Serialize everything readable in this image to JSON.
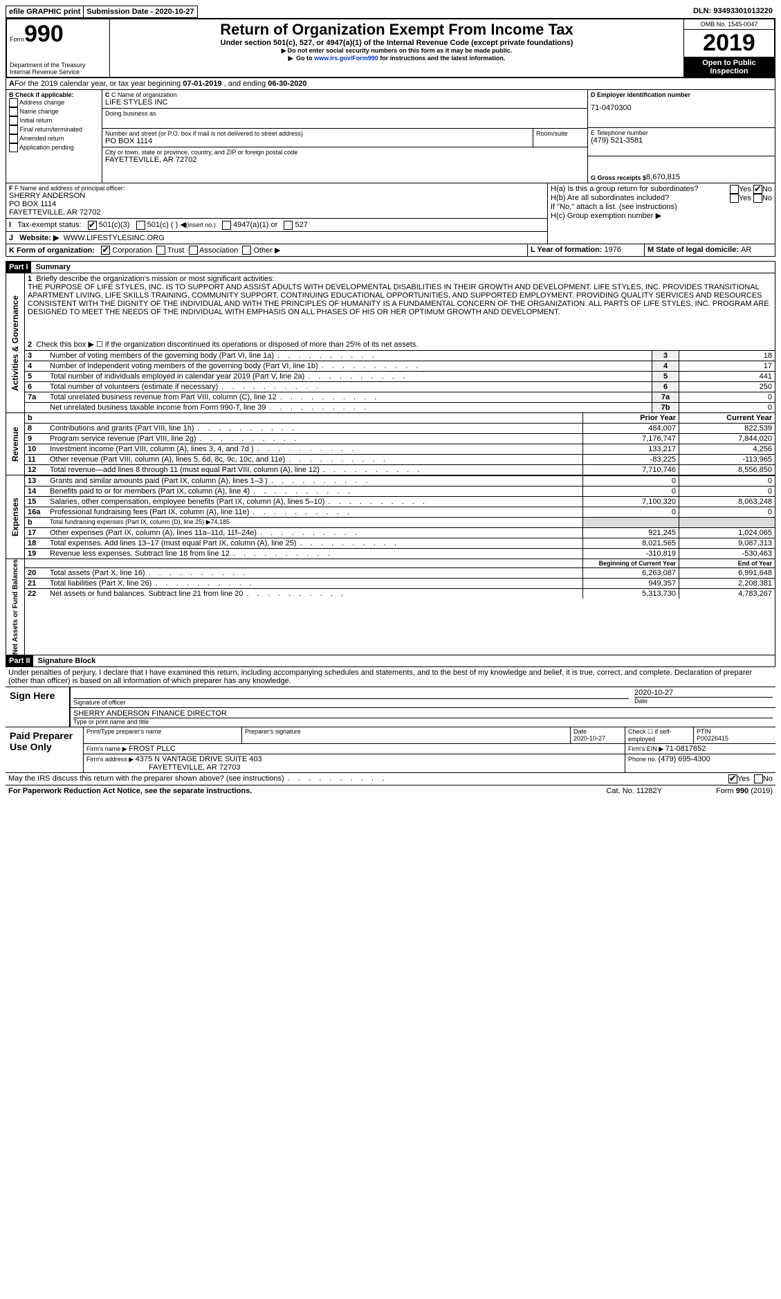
{
  "topbar": {
    "efile": "efile GRAPHIC print",
    "subdate_label": "Submission Date - ",
    "subdate": "2020-10-27",
    "dln_label": "DLN: ",
    "dln": "93493301013220"
  },
  "header": {
    "form_word": "Form",
    "form_num": "990",
    "dept1": "Department of the Treasury",
    "dept2": "Internal Revenue Service",
    "title": "Return of Organization Exempt From Income Tax",
    "sub1": "Under section 501(c), 527, or 4947(a)(1) of the Internal Revenue Code (except private foundations)",
    "sub2": "Do not enter social security numbers on this form as it may be made public.",
    "sub3_pre": "Go to ",
    "sub3_link": "www.irs.gov/Form990",
    "sub3_post": " for instructions and the latest information.",
    "omb": "OMB No. 1545-0047",
    "year": "2019",
    "open": "Open to Public Inspection"
  },
  "period": {
    "label_a": "For the 2019 calendar year, or tax year beginning ",
    "begin": "07-01-2019",
    "mid": " , and ending ",
    "end": "06-30-2020"
  },
  "boxB": {
    "label": "B Check if applicable:",
    "c1": "Address change",
    "c2": "Name change",
    "c3": "Initial return",
    "c4": "Final return/terminated",
    "c5": "Amended return",
    "c6": "Application pending"
  },
  "boxC": {
    "label": "C Name of organization",
    "name": "LIFE STYLES INC",
    "dba_label": "Doing business as",
    "street_label": "Number and street (or P.O. box if mail is not delivered to street address)",
    "street": "PO BOX 1114",
    "room_label": "Room/suite",
    "city_label": "City or town, state or province, country, and ZIP or foreign postal code",
    "city": "FAYETTEVILLE, AR  72702"
  },
  "boxD": {
    "label": "D Employer identification number",
    "val": "71-0470300"
  },
  "boxE": {
    "label": "E Telephone number",
    "val": "(479) 521-3581"
  },
  "boxG": {
    "label": "G Gross receipts $ ",
    "val": "8,670,815"
  },
  "boxF": {
    "label": "F  Name and address of principal officer:",
    "l1": "SHERRY ANDERSON",
    "l2": "PO BOX 1114",
    "l3": "FAYETTEVILLE, AR  72702"
  },
  "boxI": {
    "label": "Tax-exempt status:",
    "o1": "501(c)(3)",
    "o2": "501(c) (  )",
    "o2b": "(insert no.)",
    "o3": "4947(a)(1) or",
    "o4": "527"
  },
  "boxJ": {
    "label": "Website: ▶",
    "val": "WWW.LIFESTYLESINC.ORG"
  },
  "boxH": {
    "ha": "H(a)  Is this a group return for subordinates?",
    "hb": "H(b)  Are all subordinates included?",
    "hb2": "If \"No,\" attach a list. (see instructions)",
    "hc": "H(c)  Group exemption number ▶",
    "yes": "Yes",
    "no": "No"
  },
  "boxK": {
    "label": "K Form of organization:",
    "o1": "Corporation",
    "o2": "Trust",
    "o3": "Association",
    "o4": "Other ▶"
  },
  "boxL": {
    "label": "L Year of formation: ",
    "val": "1976"
  },
  "boxM": {
    "label": "M State of legal domicile: ",
    "val": "AR"
  },
  "part1": {
    "label_part": "Part I",
    "label_title": "Summary",
    "q1_label": "1",
    "q1_text": "Briefly describe the organization's mission or most significant activities:",
    "q1_ans": "THE PURPOSE OF LIFE STYLES, INC. IS TO SUPPORT AND ASSIST ADULTS WITH DEVELOPMENTAL DISABILITIES IN THEIR GROWTH AND DEVELOPMENT. LIFE STYLES, INC. PROVIDES TRANSITIONAL APARTMENT LIVING, LIFE SKILLS TRAINING, COMMUNITY SUPPORT, CONTINUING EDUCATIONAL OPPORTUNITIES, AND SUPPORTED EMPLOYMENT. PROVIDING QUALITY SERVICES AND RESOURCES CONSISTENT WITH THE DIGNITY OF THE INDIVIDUAL AND WITH THE PRINCIPLES OF HUMANITY IS A FUNDAMENTAL CONCERN OF THE ORGANIZATION. ALL PARTS OF LIFE STYLES, INC. PROGRAM ARE DESIGNED TO MEET THE NEEDS OF THE INDIVIDUAL WITH EMPHASIS ON ALL PHASES OF HIS OR HER OPTIMUM GROWTH AND DEVELOPMENT.",
    "q2": "Check this box ▶ ☐ if the organization discontinued its operations or disposed of more than 25% of its net assets.",
    "rows_single": [
      {
        "n": "3",
        "t": "Number of voting members of the governing body (Part VI, line 1a)",
        "v": "18"
      },
      {
        "n": "4",
        "t": "Number of independent voting members of the governing body (Part VI, line 1b)",
        "v": "17"
      },
      {
        "n": "5",
        "t": "Total number of individuals employed in calendar year 2019 (Part V, line 2a)",
        "v": "441"
      },
      {
        "n": "6",
        "t": "Total number of volunteers (estimate if necessary)",
        "v": "250"
      },
      {
        "n": "7a",
        "t": "Total unrelated business revenue from Part VIII, column (C), line 12",
        "v": "0"
      },
      {
        "n": "7b",
        "t": "Net unrelated business taxable income from Form 990-T, line 39",
        "v": "0",
        "noleft": true
      }
    ],
    "hdr_prior": "Prior Year",
    "hdr_curr": "Current Year",
    "vlabels": {
      "ag": "Activities & Governance",
      "rev": "Revenue",
      "exp": "Expenses",
      "na": "Net Assets or Fund Balances"
    },
    "rev_rows": [
      {
        "n": "8",
        "t": "Contributions and grants (Part VIII, line 1h)",
        "p": "484,007",
        "c": "822,539"
      },
      {
        "n": "9",
        "t": "Program service revenue (Part VIII, line 2g)",
        "p": "7,176,747",
        "c": "7,844,020"
      },
      {
        "n": "10",
        "t": "Investment income (Part VIII, column (A), lines 3, 4, and 7d )",
        "p": "133,217",
        "c": "4,256"
      },
      {
        "n": "11",
        "t": "Other revenue (Part VIII, column (A), lines 5, 6d, 8c, 9c, 10c, and 11e)",
        "p": "-83,225",
        "c": "-113,965"
      },
      {
        "n": "12",
        "t": "Total revenue—add lines 8 through 11 (must equal Part VIII, column (A), line 12)",
        "p": "7,710,746",
        "c": "8,556,850"
      }
    ],
    "exp_rows": [
      {
        "n": "13",
        "t": "Grants and similar amounts paid (Part IX, column (A), lines 1–3 )",
        "p": "0",
        "c": "0"
      },
      {
        "n": "14",
        "t": "Benefits paid to or for members (Part IX, column (A), line 4)",
        "p": "0",
        "c": "0"
      },
      {
        "n": "15",
        "t": "Salaries, other compensation, employee benefits (Part IX, column (A), lines 5–10)",
        "p": "7,100,320",
        "c": "8,063,248"
      },
      {
        "n": "16a",
        "t": "Professional fundraising fees (Part IX, column (A), line 11e)",
        "p": "0",
        "c": "0"
      },
      {
        "n": "b",
        "t": "Total fundraising expenses (Part IX, column (D), line 25) ▶74,185",
        "gray": true
      },
      {
        "n": "17",
        "t": "Other expenses (Part IX, column (A), lines 11a–11d, 11f–24e)",
        "p": "921,245",
        "c": "1,024,065"
      },
      {
        "n": "18",
        "t": "Total expenses. Add lines 13–17 (must equal Part IX, column (A), line 25)",
        "p": "8,021,565",
        "c": "9,087,313"
      },
      {
        "n": "19",
        "t": "Revenue less expenses. Subtract line 18 from line 12",
        "p": "-310,819",
        "c": "-530,463"
      }
    ],
    "hdr_begin": "Beginning of Current Year",
    "hdr_end": "End of Year",
    "na_rows": [
      {
        "n": "20",
        "t": "Total assets (Part X, line 16)",
        "p": "6,263,087",
        "c": "6,991,648"
      },
      {
        "n": "21",
        "t": "Total liabilities (Part X, line 26)",
        "p": "949,357",
        "c": "2,208,381"
      },
      {
        "n": "22",
        "t": "Net assets or fund balances. Subtract line 21 from line 20",
        "p": "5,313,730",
        "c": "4,783,267"
      }
    ]
  },
  "part2": {
    "label_part": "Part II",
    "label_title": "Signature Block",
    "decl": "Under penalties of perjury, I declare that I have examined this return, including accompanying schedules and statements, and to the best of my knowledge and belief, it is true, correct, and complete. Declaration of preparer (other than officer) is based on all information of which preparer has any knowledge.",
    "sign_here": "Sign Here",
    "sig_officer_label": "Signature of officer",
    "date_label": "Date",
    "sig_date": "2020-10-27",
    "printed": "SHERRY ANDERSON  FINANCE DIRECTOR",
    "printed_label": "Type or print name and title",
    "paid": "Paid Preparer Use Only",
    "pp_name_label": "Print/Type preparer's name",
    "pp_sig_label": "Preparer's signature",
    "pp_date": "2020-10-27",
    "pp_check": "Check ☐ if self-employed",
    "ptin_label": "PTIN",
    "ptin": "P00226415",
    "firm_name_label": "Firm's name    ▶ ",
    "firm_name": "FROST PLLC",
    "firm_ein_label": "Firm's EIN ▶ ",
    "firm_ein": "71-0817652",
    "firm_addr_label": "Firm's address ▶ ",
    "firm_addr1": "4375 N VANTAGE DRIVE SUITE 403",
    "firm_addr2": "FAYETTEVILLE, AR  72703",
    "phone_label": "Phone no. ",
    "phone": "(479) 695-4300",
    "may_irs": "May the IRS discuss this return with the preparer shown above? (see instructions)",
    "yes": "Yes",
    "no": "No"
  },
  "footer": {
    "left": "For Paperwork Reduction Act Notice, see the separate instructions.",
    "mid": "Cat. No. 11282Y",
    "right": "Form 990 (2019)"
  }
}
